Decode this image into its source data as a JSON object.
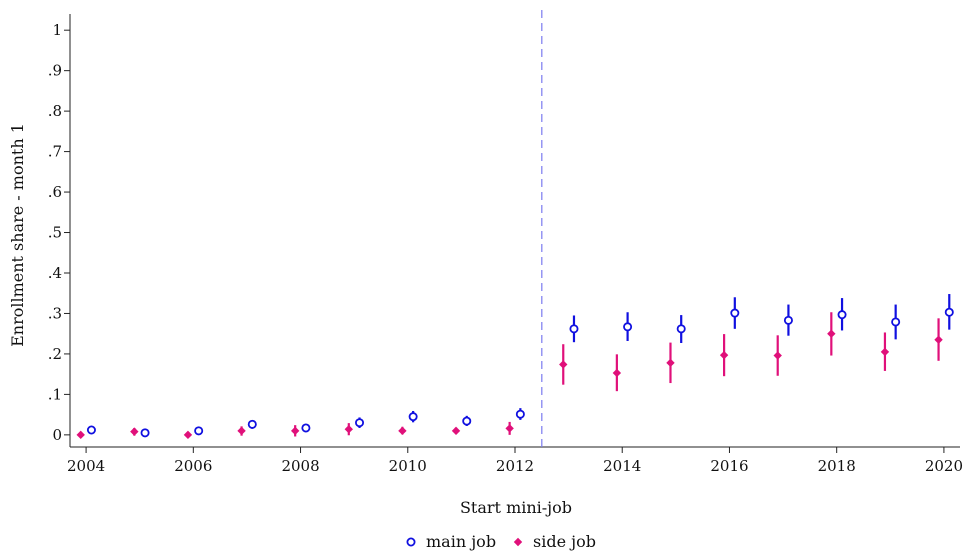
{
  "chart_data": {
    "type": "scatter",
    "title": "",
    "xlabel": "Start mini-job",
    "ylabel": "Enrollment share - month 1",
    "xlim": [
      2003.7,
      2020.3
    ],
    "ylim": [
      -0.03,
      1.04
    ],
    "x_ticks": [
      2004,
      2006,
      2008,
      2010,
      2012,
      2014,
      2016,
      2018,
      2020
    ],
    "x_tick_labels": [
      "2004",
      "2006",
      "2008",
      "2010",
      "2012",
      "2014",
      "2016",
      "2018",
      "2020"
    ],
    "y_ticks": [
      0,
      0.1,
      0.2,
      0.3,
      0.4,
      0.5,
      0.6,
      0.7,
      0.8,
      0.9,
      1
    ],
    "y_tick_labels": [
      "0",
      ".1",
      ".2",
      ".3",
      ".4",
      ".5",
      ".6",
      ".7",
      ".8",
      ".9",
      "1"
    ],
    "grid": false,
    "reference_line": {
      "x": 2012.5,
      "style": "dashed",
      "color": "#7b7bf0"
    },
    "legend": {
      "placement": "bottom-center"
    },
    "series": [
      {
        "name": "main job",
        "marker": "hollow-circle",
        "color": "#1010e0",
        "x": [
          2004.1,
          2005.1,
          2006.1,
          2007.1,
          2008.1,
          2009.1,
          2010.1,
          2011.1,
          2012.1,
          2013.1,
          2014.1,
          2015.1,
          2016.1,
          2017.1,
          2018.1,
          2019.1,
          2020.1
        ],
        "y": [
          0.012,
          0.005,
          0.01,
          0.026,
          0.017,
          0.03,
          0.045,
          0.034,
          0.051,
          0.262,
          0.267,
          0.262,
          0.301,
          0.283,
          0.297,
          0.279,
          0.303
        ],
        "lower": [
          0.005,
          0.0,
          0.004,
          0.015,
          0.009,
          0.017,
          0.031,
          0.022,
          0.037,
          0.229,
          0.232,
          0.227,
          0.262,
          0.245,
          0.258,
          0.236,
          0.26
        ],
        "upper": [
          0.019,
          0.01,
          0.017,
          0.036,
          0.025,
          0.043,
          0.059,
          0.047,
          0.066,
          0.295,
          0.303,
          0.296,
          0.34,
          0.322,
          0.338,
          0.322,
          0.348
        ]
      },
      {
        "name": "side job",
        "marker": "diamond",
        "color": "#e0107a",
        "x": [
          2003.9,
          2004.9,
          2005.9,
          2006.9,
          2007.9,
          2008.9,
          2009.9,
          2010.9,
          2011.9,
          2012.9,
          2013.9,
          2014.9,
          2015.9,
          2016.9,
          2017.9,
          2018.9,
          2019.9
        ],
        "y": [
          0.0,
          0.008,
          0.0,
          0.01,
          0.01,
          0.014,
          0.01,
          0.01,
          0.016,
          0.174,
          0.153,
          0.178,
          0.197,
          0.196,
          0.25,
          0.205,
          0.235
        ],
        "lower": [
          -0.003,
          -0.002,
          -0.003,
          -0.002,
          -0.004,
          -0.001,
          0.001,
          0.002,
          0.0,
          0.124,
          0.108,
          0.128,
          0.145,
          0.146,
          0.196,
          0.158,
          0.183
        ],
        "upper": [
          0.003,
          0.017,
          0.003,
          0.021,
          0.024,
          0.029,
          0.02,
          0.018,
          0.032,
          0.224,
          0.199,
          0.228,
          0.249,
          0.246,
          0.303,
          0.253,
          0.288
        ]
      }
    ]
  }
}
